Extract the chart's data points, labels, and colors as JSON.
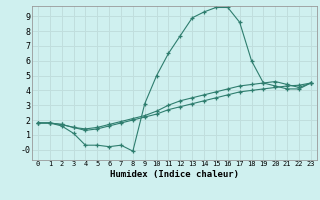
{
  "xlabel": "Humidex (Indice chaleur)",
  "bg_color": "#cff0ef",
  "grid_color": "#c0dedd",
  "line_color": "#2e7d6e",
  "xlim": [
    -0.5,
    23.5
  ],
  "ylim": [
    -0.7,
    9.7
  ],
  "xticks": [
    0,
    1,
    2,
    3,
    4,
    5,
    6,
    7,
    8,
    9,
    10,
    11,
    12,
    13,
    14,
    15,
    16,
    17,
    18,
    19,
    20,
    21,
    22,
    23
  ],
  "yticks": [
    0,
    1,
    2,
    3,
    4,
    5,
    6,
    7,
    8,
    9
  ],
  "ytick_labels": [
    "-0",
    "1",
    "2",
    "3",
    "4",
    "5",
    "6",
    "7",
    "8",
    "9"
  ],
  "series1_x": [
    0,
    1,
    2,
    3,
    4,
    5,
    6,
    7,
    8,
    9,
    10,
    11,
    12,
    13,
    14,
    15,
    16,
    17,
    18,
    19,
    20,
    21,
    22,
    23
  ],
  "series1_y": [
    1.8,
    1.8,
    1.6,
    1.1,
    0.3,
    0.3,
    0.2,
    0.3,
    -0.1,
    3.1,
    5.0,
    6.5,
    7.7,
    8.9,
    9.3,
    9.6,
    9.6,
    8.6,
    6.0,
    4.5,
    4.3,
    4.1,
    4.1,
    4.5
  ],
  "series2_x": [
    0,
    1,
    2,
    3,
    4,
    5,
    6,
    7,
    8,
    9,
    10,
    11,
    12,
    13,
    14,
    15,
    16,
    17,
    18,
    19,
    20,
    21,
    22,
    23
  ],
  "series2_y": [
    1.8,
    1.8,
    1.7,
    1.5,
    1.4,
    1.5,
    1.7,
    1.9,
    2.1,
    2.3,
    2.6,
    3.0,
    3.3,
    3.5,
    3.7,
    3.9,
    4.1,
    4.3,
    4.4,
    4.5,
    4.6,
    4.4,
    4.2,
    4.5
  ],
  "series3_x": [
    0,
    1,
    2,
    3,
    4,
    5,
    6,
    7,
    8,
    9,
    10,
    11,
    12,
    13,
    14,
    15,
    16,
    17,
    18,
    19,
    20,
    21,
    22,
    23
  ],
  "series3_y": [
    1.8,
    1.8,
    1.7,
    1.5,
    1.3,
    1.4,
    1.6,
    1.8,
    2.0,
    2.2,
    2.4,
    2.7,
    2.9,
    3.1,
    3.3,
    3.5,
    3.7,
    3.9,
    4.0,
    4.1,
    4.2,
    4.3,
    4.35,
    4.5
  ]
}
